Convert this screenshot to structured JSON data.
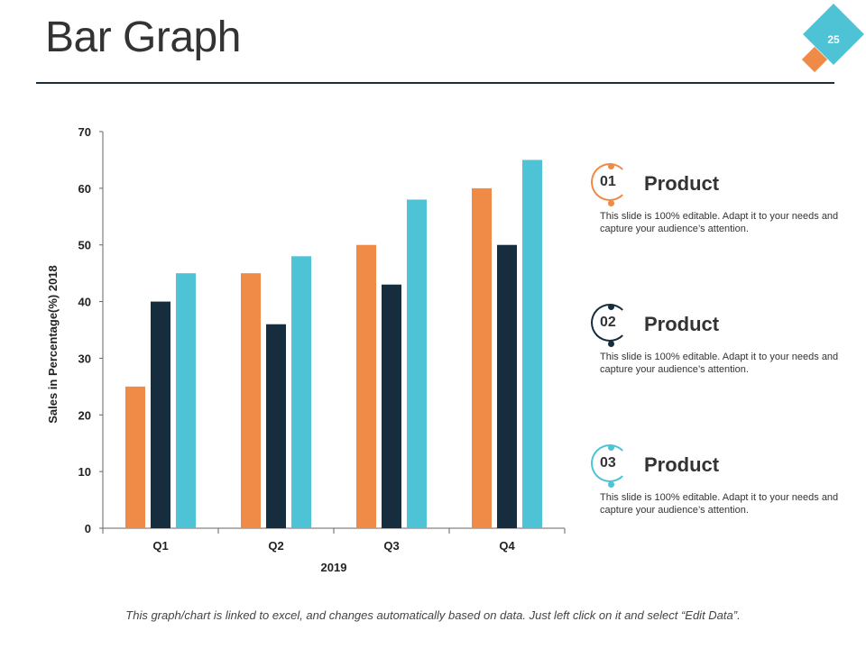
{
  "slide": {
    "title": "Bar Graph",
    "page_number": "25",
    "footer": "This graph/chart is linked to excel, and changes automatically based on data.  Just left click on it and select “Edit Data”."
  },
  "chart_data": {
    "type": "bar",
    "title": "",
    "xlabel": "2019",
    "ylabel": "Sales in Percentage(%) 2018",
    "categories": [
      "Q1",
      "Q2",
      "Q3",
      "Q4"
    ],
    "ylim": [
      0,
      70
    ],
    "yticks": [
      0,
      10,
      20,
      30,
      40,
      50,
      60,
      70
    ],
    "grid": false,
    "series": [
      {
        "name": "Product 01",
        "color": "#ef8a47",
        "values": [
          25,
          45,
          50,
          60
        ]
      },
      {
        "name": "Product 02",
        "color": "#152d3c",
        "values": [
          40,
          36,
          43,
          50
        ]
      },
      {
        "name": "Product 03",
        "color": "#4ec3d5",
        "values": [
          45,
          48,
          58,
          65
        ]
      }
    ]
  },
  "legend": [
    {
      "number": "01",
      "title": "Product",
      "color": "#ef8a47",
      "description": "This slide is 100% editable. Adapt it to your needs and capture your audience’s attention."
    },
    {
      "number": "02",
      "title": "Product",
      "color": "#152d3c",
      "description": "This slide is 100% editable. Adapt it to your needs and capture your audience’s attention."
    },
    {
      "number": "03",
      "title": "Product",
      "color": "#4ec3d5",
      "description": "This slide is 100% editable. Adapt it to your needs and capture your audience’s attention."
    }
  ]
}
